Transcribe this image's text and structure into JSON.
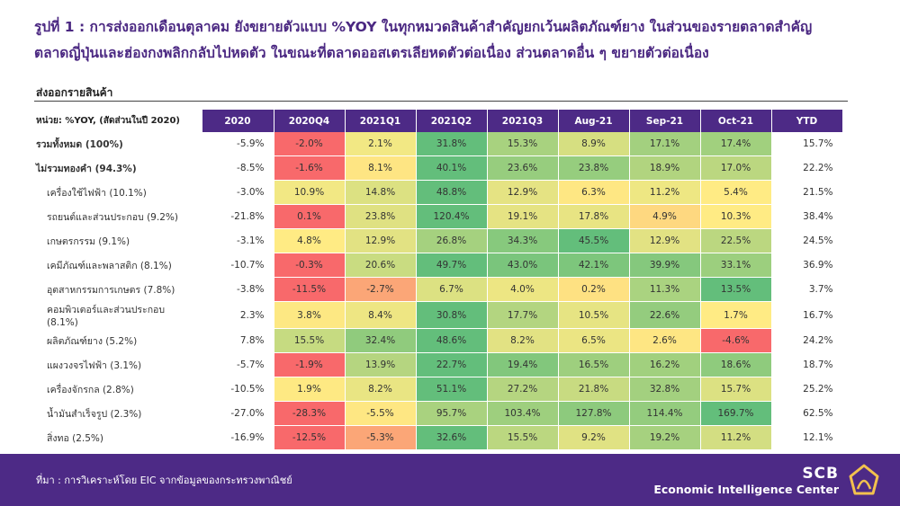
{
  "title_line1": "รูปที่ 1 : การส่งออกเดือนตุลาคม ยังขยายตัวแบบ %YOY ในทุกหมวดสินค้าสำคัญยกเว้นผลิตภัณฑ์ยาง ในส่วนของรายตลาดสำคัญ",
  "title_line2": "ตลาดญี่ปุ่นและฮ่องกงพลิกกลับไปหดตัว ในขณะที่ตลาดออสเตรเลียหดตัวต่อเนื่อง ส่วนตลาดอื่น ๆ ขยายตัวต่อเนื่อง",
  "section_title": "ส่งออกรายสินค้า",
  "unit_label": "หน่วย: %YOY, (สัดส่วนในปี 2020)",
  "columns": [
    "2020",
    "2020Q4",
    "2021Q1",
    "2021Q2",
    "2021Q3",
    "Aug-21",
    "Sep-21",
    "Oct-21",
    "YTD"
  ],
  "rows": [
    {
      "label": "รวมทั้งหมด (100%)",
      "level": 0,
      "values": [
        "-5.9%",
        "-2.0%",
        "2.1%",
        "31.8%",
        "15.3%",
        "8.9%",
        "17.1%",
        "17.4%",
        "15.7%"
      ],
      "colors": [
        "#f8696b",
        "#f2e884",
        "#63be7b",
        "#a8d27f",
        "#d6df81",
        "#a3d07f",
        "#a1d07e"
      ]
    },
    {
      "label": "ไม่รวมทองคำ (94.3%)",
      "level": 0,
      "values": [
        "-8.5%",
        "-1.6%",
        "8.1%",
        "40.1%",
        "23.6%",
        "23.8%",
        "18.9%",
        "17.0%",
        "22.2%"
      ],
      "colors": [
        "#f8696b",
        "#fee583",
        "#63be7b",
        "#97cd7e",
        "#96cd7e",
        "#b1d47f",
        "#bbd780"
      ]
    },
    {
      "label": "เครื่องใช้ไฟฟ้า (10.1%)",
      "level": 1,
      "values": [
        "-3.0%",
        "10.9%",
        "14.8%",
        "48.8%",
        "12.9%",
        "6.3%",
        "11.2%",
        "5.4%",
        "21.5%"
      ],
      "colors": [
        "#f2e884",
        "#dce182",
        "#63be7b",
        "#e5e383",
        "#fee783",
        "#eee783",
        "#ffeb84"
      ]
    },
    {
      "label": "รถยนต์และส่วนประกอบ (9.2%)",
      "level": 1,
      "values": [
        "-21.8%",
        "0.1%",
        "23.8%",
        "120.4%",
        "19.1%",
        "17.8%",
        "4.9%",
        "10.3%",
        "38.4%"
      ],
      "colors": [
        "#f8696b",
        "#dfe182",
        "#63be7b",
        "#e5e383",
        "#e8e483",
        "#fed880",
        "#ffeb84"
      ]
    },
    {
      "label": "เกษตรกรรม (9.1%)",
      "level": 1,
      "values": [
        "-3.1%",
        "4.8%",
        "12.9%",
        "26.8%",
        "34.3%",
        "45.5%",
        "12.9%",
        "22.5%",
        "24.5%"
      ],
      "colors": [
        "#ffeb84",
        "#e2e283",
        "#a5d17f",
        "#87c97d",
        "#63be7b",
        "#e2e283",
        "#bbd780"
      ]
    },
    {
      "label": "เคมีภัณฑ์และพลาสติก (8.1%)",
      "level": 1,
      "values": [
        "-10.7%",
        "-0.3%",
        "20.6%",
        "49.7%",
        "43.0%",
        "42.1%",
        "39.9%",
        "33.1%",
        "36.9%"
      ],
      "colors": [
        "#f8696b",
        "#c9dc81",
        "#63be7b",
        "#7ac57c",
        "#7dc67c",
        "#85c87d",
        "#9ccf7e"
      ]
    },
    {
      "label": "อุตสาหกรรมการเกษตร (7.8%)",
      "level": 1,
      "values": [
        "-3.8%",
        "-11.5%",
        "-2.7%",
        "6.7%",
        "4.0%",
        "0.2%",
        "11.3%",
        "13.5%",
        "3.7%"
      ],
      "colors": [
        "#f8696b",
        "#fba677",
        "#dce182",
        "#ede683",
        "#fee182",
        "#aad380",
        "#63be7b"
      ]
    },
    {
      "label": "คอมพิวเตอร์และส่วนประกอบ (8.1%)",
      "level": 1,
      "values": [
        "2.3%",
        "3.8%",
        "8.4%",
        "30.8%",
        "17.7%",
        "10.5%",
        "22.6%",
        "1.7%",
        "16.7%"
      ],
      "colors": [
        "#fde883",
        "#eee683",
        "#63be7b",
        "#b3d580",
        "#e6e483",
        "#94cc7e",
        "#ffeb84"
      ]
    },
    {
      "label": "ผลิตภัณฑ์ยาง (5.2%)",
      "level": 1,
      "values": [
        "7.8%",
        "15.5%",
        "32.4%",
        "48.6%",
        "8.2%",
        "6.5%",
        "2.6%",
        "-4.6%",
        "24.2%"
      ],
      "colors": [
        "#c6db81",
        "#90cb7d",
        "#63be7b",
        "#e2e283",
        "#ebe583",
        "#fee683",
        "#f8696b"
      ]
    },
    {
      "label": "แผงวงจรไฟฟ้า (3.1%)",
      "level": 1,
      "values": [
        "-5.7%",
        "-1.9%",
        "13.9%",
        "22.7%",
        "19.4%",
        "16.5%",
        "16.2%",
        "18.6%",
        "18.7%"
      ],
      "colors": [
        "#f8696b",
        "#b5d580",
        "#63be7b",
        "#82c77c",
        "#9ecf7e",
        "#a1d07e",
        "#8fcb7d"
      ]
    },
    {
      "label": "เครื่องจักรกล (2.8%)",
      "level": 1,
      "values": [
        "-10.5%",
        "1.9%",
        "8.2%",
        "51.1%",
        "27.2%",
        "21.8%",
        "32.8%",
        "15.7%",
        "25.2%"
      ],
      "colors": [
        "#fee983",
        "#e9e583",
        "#63be7b",
        "#b5d580",
        "#c8db81",
        "#a3d07f",
        "#dce182"
      ]
    },
    {
      "label": "น้ำมันสำเร็จรูป (2.3%)",
      "level": 1,
      "values": [
        "-27.0%",
        "-28.3%",
        "-5.5%",
        "95.7%",
        "103.4%",
        "127.8%",
        "114.4%",
        "169.7%",
        "62.5%"
      ],
      "colors": [
        "#f8696b",
        "#fee783",
        "#a9d27f",
        "#9ecf7e",
        "#8dca7d",
        "#94cc7e",
        "#63be7b"
      ]
    },
    {
      "label": "สิ่งทอ (2.5%)",
      "level": 1,
      "values": [
        "-16.9%",
        "-12.5%",
        "-5.3%",
        "32.6%",
        "15.5%",
        "9.2%",
        "19.2%",
        "11.2%",
        "12.1%"
      ],
      "colors": [
        "#f8696b",
        "#fba677",
        "#63be7b",
        "#bbd780",
        "#e0e283",
        "#a6d17f",
        "#d3de82"
      ]
    }
  ],
  "footer": {
    "source": "ที่มา : การวิเคราะห์โดย EIC จากข้อมูลของกระทรวงพาณิชย์",
    "brand": "SCB",
    "brand_sub": "Economic Intelligence Center"
  }
}
